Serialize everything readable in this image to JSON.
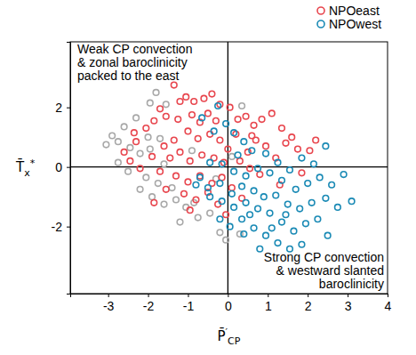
{
  "chart_data": {
    "type": "scatter",
    "x_label": "P̄′CP",
    "y_label": "T̄x*",
    "xlim": [
      -3.95,
      4
    ],
    "ylim": [
      -4.25,
      4.2
    ],
    "xticks": [
      -3,
      -2,
      -1,
      0,
      1,
      2,
      3,
      4
    ],
    "yticks": [
      -2,
      0,
      2
    ],
    "legend": "top-right",
    "marker": "circle-open",
    "annotations": [
      [
        "Weak CP convection",
        "& zonal baroclinicity",
        "packed to the east"
      ],
      [
        "Strong CP convection",
        "& westward slanted",
        "baroclinicity"
      ]
    ],
    "series": [
      {
        "color": "#a8a8a8",
        "x": [
          -2.9,
          -2.75,
          -2.6,
          -2.3,
          -1.95,
          -1.8,
          -1.55,
          -2.45,
          -2.2,
          -1.95,
          -1.7,
          -3.05,
          -2.75,
          -2.5,
          -2.05,
          -1.75,
          -1.4,
          -2.2,
          -1.9,
          -1.6,
          -1.3,
          -1.05,
          -0.75,
          -0.45,
          -0.2,
          -0.05,
          0.3,
          -1.2,
          -0.85,
          -0.3,
          0.1,
          0.35,
          -0.9,
          -1.6,
          -2.0
        ],
        "values": [
          1.05,
          0.85,
          1.35,
          1.65,
          2.15,
          2.5,
          2.1,
          0.65,
          0.45,
          0.6,
          0.95,
          0.75,
          0.15,
          -0.15,
          -0.35,
          -0.55,
          -0.7,
          -0.75,
          -1.0,
          -1.25,
          -1.1,
          -1.35,
          -1.7,
          -1.55,
          -2.2,
          -2.45,
          -2.25,
          -1.85,
          -1.2,
          -0.4,
          0.35,
          2.05,
          0.55,
          0.1,
          1.0
        ]
      },
      {
        "name": "NPOeast",
        "color": "#e8464e",
        "x": [
          -1.35,
          -1.2,
          -1.05,
          -0.85,
          -0.6,
          -0.4,
          -0.2,
          -1.7,
          -1.55,
          -1.85,
          -2.05,
          -1.25,
          -0.9,
          -0.7,
          -0.5,
          -0.3,
          0.05,
          0.25,
          0.45,
          0.65,
          0.85,
          1.1,
          1.35,
          1.6,
          1.45,
          1.75,
          2.05,
          1.2,
          0.95,
          0.7,
          0.5,
          0.2,
          0.0,
          -0.2,
          -0.45,
          -0.75,
          -1.0,
          -1.35,
          -1.6,
          -2.3,
          -2.6,
          -2.45,
          -2.2,
          -1.9,
          -1.7,
          -1.45,
          -1.2,
          -0.95,
          -0.65,
          -0.35,
          -0.1,
          0.3,
          0.55,
          0.8,
          -1.3,
          -1.0,
          -0.7,
          -0.4,
          -0.15,
          -1.55,
          -1.1,
          -0.8,
          -0.5,
          -0.25,
          0.1,
          0.35,
          -1.85,
          -0.95,
          1.85,
          1.3,
          2.2,
          -2.35,
          0.6,
          -0.05
        ],
        "values": [
          2.75,
          2.2,
          2.35,
          2.2,
          2.3,
          2.45,
          2.1,
          1.95,
          1.7,
          1.55,
          1.3,
          1.6,
          1.75,
          1.5,
          1.8,
          1.55,
          2.0,
          1.6,
          1.7,
          1.4,
          1.6,
          1.8,
          1.3,
          1.0,
          0.8,
          0.6,
          0.55,
          0.3,
          0.7,
          0.9,
          0.5,
          1.1,
          0.6,
          0.9,
          1.1,
          0.95,
          1.2,
          0.9,
          0.7,
          0.85,
          0.5,
          0.2,
          -0.05,
          0.35,
          -0.15,
          0.3,
          0.5,
          0.2,
          0.4,
          0.3,
          0.15,
          0.2,
          -0.05,
          -0.25,
          -0.3,
          -0.5,
          -0.3,
          -0.55,
          -0.35,
          -0.75,
          -0.9,
          -1.1,
          -0.85,
          -1.25,
          -0.7,
          -1.05,
          -1.2,
          -1.45,
          -0.2,
          -0.6,
          0.9,
          1.15,
          1.05,
          -1.6
        ]
      },
      {
        "name": "NPOwest",
        "color": "#1a8ab5",
        "x": [
          -0.25,
          -0.05,
          0.15,
          0.4,
          -0.35,
          0.6,
          0.25,
          0.95,
          1.25,
          1.55,
          1.85,
          2.15,
          2.45,
          2.3,
          2.6,
          2.0,
          1.7,
          1.35,
          1.05,
          0.75,
          0.45,
          0.15,
          -0.15,
          -0.45,
          -0.7,
          -0.5,
          -0.2,
          0.1,
          0.35,
          0.65,
          0.9,
          1.2,
          1.5,
          1.8,
          2.1,
          2.45,
          2.75,
          3.1,
          2.25,
          1.95,
          1.65,
          1.35,
          1.05,
          0.75,
          0.45,
          0.15,
          -0.15,
          -0.45,
          -0.8,
          0.35,
          0.65,
          0.95,
          1.25,
          1.55,
          1.85,
          0.8,
          0.4,
          0.05,
          -0.2,
          1.1,
          2.5,
          1.45,
          0.55,
          -0.65,
          2.9
        ],
        "values": [
          2.05,
          1.45,
          1.15,
          0.85,
          1.2,
          0.55,
          0.4,
          0.45,
          0.15,
          -0.1,
          0.3,
          0.1,
          0.7,
          -0.35,
          -0.6,
          -0.55,
          -0.75,
          -0.45,
          -0.2,
          -0.05,
          -0.3,
          -0.15,
          0.1,
          0.15,
          -0.35,
          -0.7,
          -0.55,
          -0.9,
          -0.65,
          -0.8,
          -1.0,
          -0.95,
          -1.25,
          -1.4,
          -1.2,
          -1.05,
          -1.35,
          -1.15,
          -1.75,
          -1.9,
          -2.15,
          -1.85,
          -1.55,
          -1.4,
          -1.2,
          -1.35,
          -1.15,
          -1.0,
          -0.6,
          -1.75,
          -2.05,
          -2.3,
          -2.55,
          -2.75,
          -2.6,
          -2.75,
          -2.25,
          -2.0,
          -1.75,
          -2.05,
          -2.3,
          -1.6,
          -1.6,
          1.65,
          -0.25
        ]
      }
    ]
  }
}
